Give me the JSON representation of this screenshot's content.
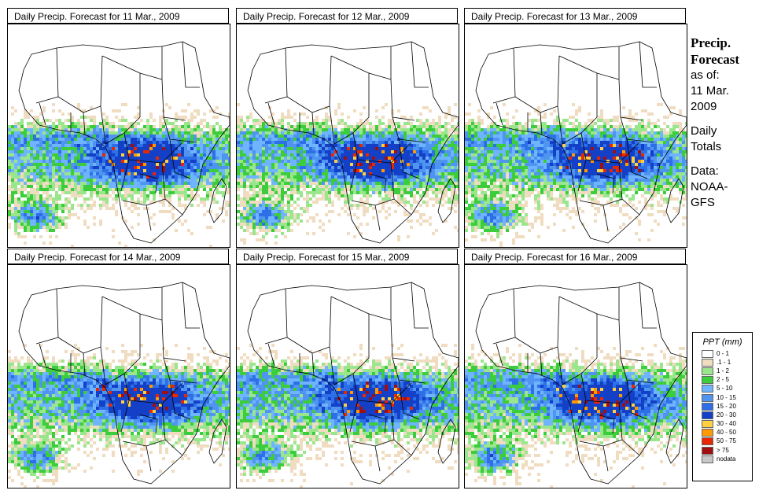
{
  "panels": [
    {
      "title": "Daily Precip. Forecast for  11 Mar., 2009",
      "seed": 11
    },
    {
      "title": "Daily Precip. Forecast for  12 Mar., 2009",
      "seed": 12
    },
    {
      "title": "Daily Precip. Forecast for  13 Mar., 2009",
      "seed": 13
    },
    {
      "title": "Daily Precip. Forecast for  14 Mar., 2009",
      "seed": 14
    },
    {
      "title": "Daily Precip. Forecast for  15 Mar., 2009",
      "seed": 15
    },
    {
      "title": "Daily Precip. Forecast for  16 Mar., 2009",
      "seed": 16
    }
  ],
  "side": {
    "line1": "Precip.",
    "line2": "Forecast",
    "line3": "as of:",
    "line4": "11 Mar.",
    "line5": "2009",
    "line6": "Daily",
    "line7": "Totals",
    "line8": "Data:",
    "line9": "NOAA-",
    "line10": "GFS"
  },
  "legend": {
    "title": "PPT (mm)",
    "items": [
      {
        "label": "0 - 1",
        "color": "#ffffff"
      },
      {
        "label": ".1 - 1",
        "color": "#f0dcc0"
      },
      {
        "label": "1 - 2",
        "color": "#9ae68c"
      },
      {
        "label": "2 - 5",
        "color": "#3ccd3c"
      },
      {
        "label": "5 - 10",
        "color": "#6fb4ff"
      },
      {
        "label": "10 - 15",
        "color": "#4f95f0"
      },
      {
        "label": "15 - 20",
        "color": "#2c6fe6"
      },
      {
        "label": "20 - 30",
        "color": "#1440c8"
      },
      {
        "label": "30 - 40",
        "color": "#ffd040"
      },
      {
        "label": "40 - 50",
        "color": "#ff9a00"
      },
      {
        "label": "50 - 75",
        "color": "#e82800"
      },
      {
        "label": "> 75",
        "color": "#a01010"
      },
      {
        "label": "nodata",
        "color": "#c8c8c8"
      }
    ]
  }
}
